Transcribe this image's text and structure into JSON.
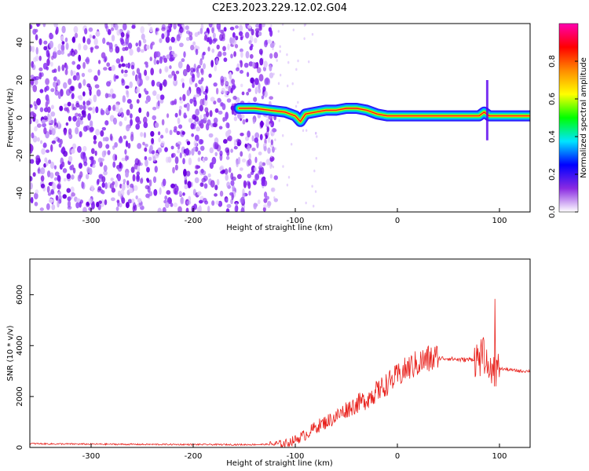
{
  "figure": {
    "title": "C2E3.2023.229.12.02.G04"
  },
  "chart_data": [
    {
      "type": "heatmap",
      "title": "C2E3.2023.229.12.02.G04",
      "xlabel": "Height of straight line (km)",
      "ylabel": "Frequency (Hz)",
      "xlim": [
        -360,
        130
      ],
      "ylim": [
        -50,
        50
      ],
      "x_ticks": [
        -300,
        -200,
        -100,
        0,
        100
      ],
      "y_ticks": [
        -40,
        -20,
        0,
        20,
        40
      ],
      "colorbar": {
        "label": "Normalized spectral amplitude",
        "range": [
          0,
          1
        ],
        "ticks": [
          0.0,
          0.2,
          0.4,
          0.6,
          0.8
        ],
        "colors": [
          "#ffffff",
          "#8a2be2",
          "#0000ff",
          "#00e5ff",
          "#00ff00",
          "#ffff00",
          "#ff8c00",
          "#ff0000",
          "#ff00b0"
        ]
      },
      "noise_region": {
        "x_from": -360,
        "x_to": -125,
        "color": "#7b00e6"
      },
      "signal_trace": {
        "x": [
          -155,
          -140,
          -125,
          -110,
          -100,
          -95,
          -90,
          -80,
          -70,
          -60,
          -50,
          -40,
          -30,
          -20,
          -10,
          0,
          20,
          40,
          60,
          80,
          85,
          90,
          95,
          100,
          130
        ],
        "y": [
          5,
          5,
          4,
          3,
          1,
          -2,
          2,
          3,
          4,
          4,
          5,
          5,
          4,
          2,
          1,
          1,
          1,
          1,
          1,
          1,
          3,
          1,
          1,
          1,
          1
        ]
      },
      "grid": false
    },
    {
      "type": "line",
      "xlabel": "Height of straight line (km)",
      "ylabel": "SNR (10 * v/v)",
      "xlim": [
        -360,
        130
      ],
      "ylim": [
        0,
        7400
      ],
      "x_ticks": [
        -300,
        -200,
        -100,
        0,
        100
      ],
      "y_ticks": [
        0,
        2000,
        4000,
        6000
      ],
      "series": [
        {
          "color": "#e8211c",
          "x": [
            -360,
            -340,
            -300,
            -250,
            -200,
            -150,
            -125,
            -110,
            -100,
            -90,
            -80,
            -70,
            -60,
            -50,
            -40,
            -30,
            -20,
            -10,
            0,
            10,
            20,
            30,
            40,
            50,
            60,
            70,
            80,
            85,
            90,
            95,
            100,
            110,
            120,
            130
          ],
          "y": [
            150,
            140,
            130,
            120,
            115,
            110,
            120,
            150,
            300,
            500,
            800,
            1000,
            1200,
            1500,
            1700,
            1900,
            2200,
            2500,
            2800,
            3100,
            3300,
            3450,
            3500,
            3500,
            3450,
            3450,
            3500,
            3600,
            3400,
            3100,
            3100,
            3050,
            3000,
            3000
          ]
        }
      ],
      "grid": false
    }
  ]
}
